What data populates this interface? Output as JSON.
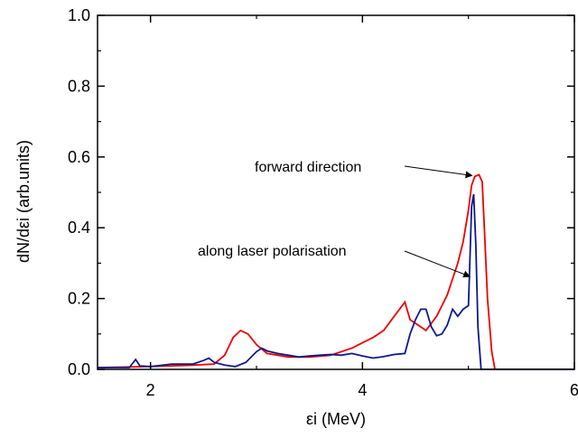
{
  "chart_data": {
    "type": "line",
    "title": "",
    "xlabel": "εi (MeV)",
    "ylabel": "dN/dεi (arb.units)",
    "xlim": [
      1.5,
      6
    ],
    "ylim": [
      0,
      1.0
    ],
    "xticks": [
      2,
      4,
      6
    ],
    "xtick_labels": [
      "2",
      "4",
      "6"
    ],
    "yticks": [
      0.0,
      0.2,
      0.4,
      0.6,
      0.8,
      1.0
    ],
    "ytick_labels": [
      "0.0",
      "0.2",
      "0.4",
      "0.6",
      "0.8",
      "1.0"
    ],
    "grid": false,
    "legend": "none",
    "series": [
      {
        "color": "#ee0000",
        "x": [
          1.5,
          2.0,
          2.4,
          2.6,
          2.7,
          2.78,
          2.85,
          2.92,
          3.0,
          3.1,
          3.2,
          3.3,
          3.5,
          3.7,
          3.9,
          4.0,
          4.1,
          4.2,
          4.3,
          4.35,
          4.4,
          4.45,
          4.5,
          4.55,
          4.6,
          4.7,
          4.8,
          4.9,
          4.95,
          5.0,
          5.03,
          5.06,
          5.1,
          5.13,
          5.15,
          5.18,
          5.22,
          5.25,
          5.3,
          6.0
        ],
        "y": [
          0.005,
          0.008,
          0.012,
          0.015,
          0.04,
          0.09,
          0.11,
          0.1,
          0.07,
          0.045,
          0.04,
          0.035,
          0.035,
          0.04,
          0.06,
          0.075,
          0.09,
          0.11,
          0.15,
          0.17,
          0.19,
          0.14,
          0.13,
          0.12,
          0.11,
          0.15,
          0.21,
          0.3,
          0.36,
          0.45,
          0.52,
          0.545,
          0.55,
          0.53,
          0.4,
          0.2,
          0.05,
          0.0,
          0.0,
          0.0
        ]
      },
      {
        "color": "#0a1a8c",
        "x": [
          1.5,
          1.8,
          1.86,
          1.9,
          2.0,
          2.2,
          2.4,
          2.5,
          2.55,
          2.6,
          2.7,
          2.8,
          2.9,
          3.0,
          3.05,
          3.1,
          3.2,
          3.3,
          3.4,
          3.5,
          3.6,
          3.7,
          3.8,
          3.9,
          4.0,
          4.1,
          4.2,
          4.3,
          4.4,
          4.45,
          4.5,
          4.55,
          4.6,
          4.65,
          4.7,
          4.75,
          4.8,
          4.85,
          4.9,
          4.95,
          5.0,
          5.03,
          5.05,
          5.07,
          5.09,
          5.12,
          5.15,
          6.0
        ],
        "y": [
          0.005,
          0.005,
          0.028,
          0.01,
          0.008,
          0.015,
          0.015,
          0.025,
          0.032,
          0.02,
          0.012,
          0.008,
          0.02,
          0.05,
          0.06,
          0.052,
          0.045,
          0.04,
          0.035,
          0.038,
          0.04,
          0.042,
          0.04,
          0.045,
          0.038,
          0.032,
          0.036,
          0.042,
          0.045,
          0.1,
          0.14,
          0.17,
          0.17,
          0.12,
          0.095,
          0.1,
          0.125,
          0.17,
          0.15,
          0.17,
          0.18,
          0.46,
          0.495,
          0.35,
          0.12,
          0.0,
          0.0,
          0.0
        ]
      }
    ],
    "annotations": [
      {
        "text": "forward direction",
        "arrow_to": [
          5.05,
          0.545
        ]
      },
      {
        "text": "along laser polarisation",
        "arrow_to": [
          5.03,
          0.26
        ]
      }
    ]
  }
}
